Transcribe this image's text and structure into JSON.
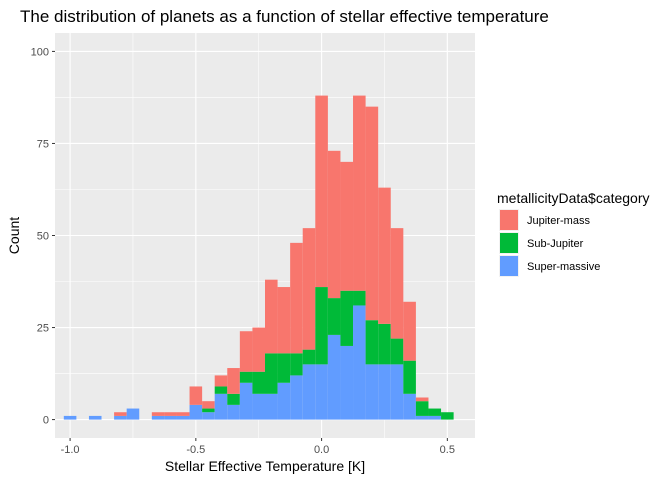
{
  "chart_data": {
    "type": "bar",
    "stacked": true,
    "title": "The distribution of planets as a function of stellar effective temperature",
    "xlabel": "Stellar Effective Temperature [K]",
    "ylabel": "Count",
    "xlim": [
      -1.06,
      0.61
    ],
    "ylim": [
      -5,
      105
    ],
    "x_ticks": [
      -1.0,
      -0.5,
      0.0,
      0.5
    ],
    "x_tick_labels": [
      "-1.0",
      "-0.5",
      "0.0",
      "0.5"
    ],
    "y_ticks": [
      0,
      25,
      50,
      75,
      100
    ],
    "y_tick_labels": [
      "0",
      "25",
      "50",
      "75",
      "100"
    ],
    "grid": true,
    "legend": {
      "title": "metallicityData$category",
      "position": "right"
    },
    "bin_width": 0.05,
    "bin_centers": [
      -1.0,
      -0.95,
      -0.9,
      -0.85,
      -0.8,
      -0.75,
      -0.7,
      -0.65,
      -0.6,
      -0.55,
      -0.5,
      -0.45,
      -0.4,
      -0.35,
      -0.3,
      -0.25,
      -0.2,
      -0.15,
      -0.1,
      -0.05,
      0.0,
      0.05,
      0.1,
      0.15,
      0.2,
      0.25,
      0.3,
      0.35,
      0.4,
      0.45,
      0.5
    ],
    "series": [
      {
        "name": "Super-massive",
        "color": "#619CFF",
        "values": [
          1,
          0,
          1,
          0,
          1,
          3,
          0,
          1,
          1,
          1,
          4,
          2,
          7,
          4,
          10,
          7,
          7,
          10,
          12,
          15,
          15,
          23,
          20,
          31,
          15,
          15,
          15,
          7,
          1,
          1,
          0
        ]
      },
      {
        "name": "Sub-Jupiter",
        "color": "#00BA38",
        "values": [
          0,
          0,
          0,
          0,
          0,
          0,
          0,
          0,
          0,
          0,
          0,
          1,
          2,
          3,
          3,
          6,
          11,
          8,
          6,
          4,
          21,
          10,
          15,
          4,
          12,
          11,
          7,
          9,
          4,
          2,
          2
        ]
      },
      {
        "name": "Jupiter-mass",
        "color": "#F8766D",
        "values": [
          0,
          0,
          0,
          0,
          1,
          0,
          0,
          1,
          1,
          1,
          5,
          2,
          3,
          7,
          11,
          12,
          20,
          18,
          30,
          33,
          52,
          40,
          35,
          53,
          58,
          37,
          30,
          16,
          1,
          0,
          0
        ]
      }
    ],
    "legend_order": [
      "Jupiter-mass",
      "Sub-Jupiter",
      "Super-massive"
    ]
  }
}
